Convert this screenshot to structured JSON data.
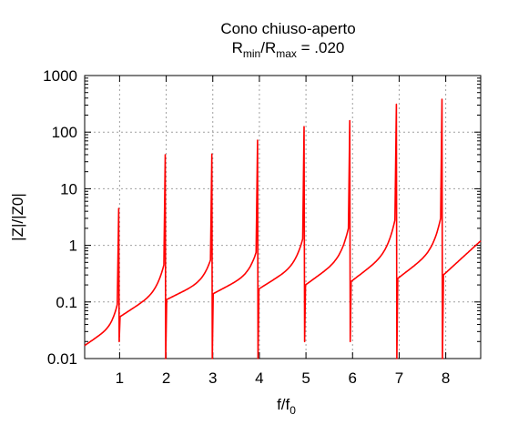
{
  "chart_data": {
    "type": "line",
    "title_lines": [
      {
        "text": "Cono chiuso-aperto"
      },
      {
        "parts": [
          {
            "text": "R",
            "sub": false
          },
          {
            "text": "min",
            "sub": true
          },
          {
            "text": "/R",
            "sub": false
          },
          {
            "text": "max",
            "sub": true
          },
          {
            "text": " = .020",
            "sub": false
          }
        ]
      }
    ],
    "xlabel": {
      "parts": [
        {
          "text": "f/f",
          "sub": false
        },
        {
          "text": "0",
          "sub": true
        }
      ]
    },
    "ylabel": "|Z|/|Z0|",
    "yscale": "log",
    "xlim": [
      0.25,
      8.75
    ],
    "ylim": [
      0.01,
      1000
    ],
    "x_ticks": [
      1,
      2,
      3,
      4,
      5,
      6,
      7,
      8
    ],
    "x_tick_labels": [
      "1",
      "2",
      "3",
      "4",
      "5",
      "6",
      "7",
      "8"
    ],
    "y_ticks": [
      0.01,
      0.1,
      1,
      10,
      100,
      1000
    ],
    "y_tick_labels": [
      "0.01",
      "0.1",
      "1",
      "10",
      "100",
      "1000"
    ],
    "grid": true,
    "line_color": "#ff0000",
    "series": [
      {
        "values_note_free": true,
        "peaks": [
          {
            "x": 0.98,
            "y": 4.5
          },
          {
            "x": 1.98,
            "y": 40
          },
          {
            "x": 2.98,
            "y": 41
          },
          {
            "x": 3.96,
            "y": 72
          },
          {
            "x": 4.96,
            "y": 125
          },
          {
            "x": 5.94,
            "y": 160
          },
          {
            "x": 6.94,
            "y": 310
          },
          {
            "x": 7.92,
            "y": 380
          }
        ],
        "dips": [
          {
            "x": 0.99,
            "y": 0.02
          },
          {
            "x": 1.99,
            "y": 0.01
          },
          {
            "x": 2.99,
            "y": 0.01
          },
          {
            "x": 3.97,
            "y": 0.01
          },
          {
            "x": 4.97,
            "y": 0.02
          },
          {
            "x": 5.95,
            "y": 0.02
          },
          {
            "x": 6.95,
            "y": 0.01
          },
          {
            "x": 7.93,
            "y": 0.01
          }
        ],
        "segment_start_y": [
          0.017,
          0.055,
          0.11,
          0.14,
          0.17,
          0.2,
          0.23,
          0.26,
          0.3
        ],
        "segment_end_y": [
          0.09,
          0.45,
          0.55,
          0.75,
          1.3,
          2.0,
          2.8,
          3.0,
          1.2
        ]
      }
    ]
  }
}
